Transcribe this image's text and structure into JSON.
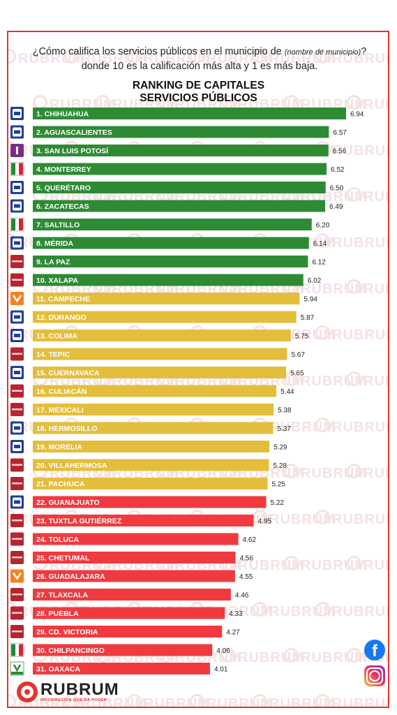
{
  "question": {
    "before": "¿Cómo califica los servicios públicos en el municipio de ",
    "italic": "(nombre de municipio)",
    "after": "? donde 10 es la calificación más alta y 1 es más baja."
  },
  "watermark": "RUBRUM",
  "brand": {
    "name": "RUBRUM",
    "tagline": "INFORMACIÓN QUE DA PODER"
  },
  "social": {
    "facebook": "f"
  },
  "colors": {
    "frame": "#e8322b",
    "green": "#2e8b34",
    "yellow": "#e3be3c",
    "red": "#f03a3f"
  },
  "chart_data": {
    "type": "bar",
    "orientation": "horizontal",
    "title": [
      "RANKING DE CAPITALES",
      "SERVICIOS PÚBLICOS"
    ],
    "categories": [
      "1. CHIHUAHUA",
      "2. AGUASCALIENTES",
      "3. SAN LUIS POTOSÍ",
      "4. MONTERREY",
      "5. QUERÉTARO",
      "6. ZACATECAS",
      "7. SALTILLO",
      "8. MÉRIDA",
      "9. LA PAZ",
      "10. XALAPA",
      "11. CAMPECHE",
      "12. DURANGO",
      "13. COLIMA",
      "14. TEPIC",
      "15. CUERNAVACA",
      "16. CULIACÁN",
      "17. MEXICALI",
      "18. HERMOSILLO",
      "19. MORELIA",
      "20. VILLAHERMOSA",
      "21. PACHUCA",
      "22. GUANAJUATO",
      "23. TUXTLA GUTIÉRREZ",
      "24. TOLUCA",
      "25. CHETUMAL",
      "26. GUADALAJARA",
      "27. TLAXCALA",
      "28. PUEBLA",
      "29. CD. VICTORIA",
      "30. CHILPANCINGO",
      "31. OAXACA"
    ],
    "values": [
      6.94,
      6.57,
      6.56,
      6.52,
      6.5,
      6.49,
      6.2,
      6.14,
      6.12,
      6.02,
      5.94,
      5.87,
      5.75,
      5.67,
      5.65,
      5.44,
      5.38,
      5.37,
      5.29,
      5.28,
      5.25,
      5.22,
      4.95,
      4.62,
      4.56,
      4.55,
      4.46,
      4.33,
      4.27,
      4.06,
      4.01
    ],
    "value_labels": [
      "6.94",
      "6.57",
      "6.56",
      "6.52",
      "6.50",
      "6.49",
      "6.20",
      "6.14",
      "6.12",
      "6.02",
      "5.94",
      "5.87",
      "5.75",
      "5.67",
      "5.65",
      "5.44",
      "5.38",
      "5.37",
      "5.29",
      "5.28",
      "5.25",
      "5.22",
      "4.95",
      "4.62",
      "4.56",
      "4.55",
      "4.46",
      "4.33",
      "4.27",
      "4.06",
      "4.01"
    ],
    "bar_colors": [
      "green",
      "green",
      "green",
      "green",
      "green",
      "green",
      "green",
      "green",
      "green",
      "green",
      "yellow",
      "yellow",
      "yellow",
      "yellow",
      "yellow",
      "yellow",
      "yellow",
      "yellow",
      "yellow",
      "yellow",
      "yellow",
      "red",
      "red",
      "red",
      "red",
      "red",
      "red",
      "red",
      "red",
      "red",
      "red"
    ],
    "party_icons": [
      "PAN",
      "PAN",
      "I",
      "PRI",
      "PAN",
      "PAN",
      "PRI",
      "PAN",
      "morena",
      "morena",
      "MC",
      "PAN",
      "PAN",
      "morena",
      "PAN",
      "morena",
      "morena",
      "PAN",
      "PAN",
      "morena",
      "morena",
      "PAN",
      "morena",
      "morena",
      "morena",
      "MC",
      "morena",
      "morena",
      "morena",
      "PRI",
      "VERDE"
    ],
    "grid": false,
    "legend": "none"
  }
}
